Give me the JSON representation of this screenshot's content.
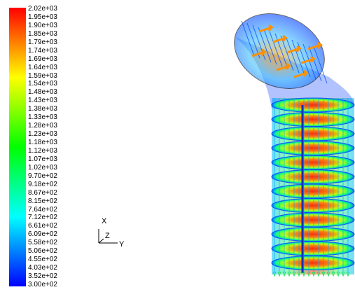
{
  "colorbar": {
    "labels": [
      "2.02e+03",
      "1.95e+03",
      "1.90e+03",
      "1.85e+03",
      "1.79e+03",
      "1.74e+03",
      "1.69e+03",
      "1.64e+03",
      "1.59e+03",
      "1.54e+03",
      "1.48e+03",
      "1.43e+03",
      "1.38e+03",
      "1.33e+03",
      "1.28e+03",
      "1.23e+03",
      "1.18e+03",
      "1.12e+03",
      "1.07e+03",
      "1.02e+03",
      "9.70e+02",
      "9.18e+02",
      "8.67e+02",
      "8.15e+02",
      "7.64e+02",
      "7.12e+02",
      "6.61e+02",
      "6.09e+02",
      "5.58e+02",
      "5.06e+02",
      "4.55e+02",
      "4.03e+02",
      "3.52e+02",
      "3.00e+02"
    ],
    "colors_top_to_bottom": [
      "#ff0000",
      "#ff8000",
      "#ffff00",
      "#80ff00",
      "#00ff00",
      "#00ff80",
      "#00ffff",
      "#0080ff",
      "#0000ff"
    ]
  },
  "axes_triad": {
    "x_label": "X",
    "z_label": "Z",
    "y_label": "Y"
  },
  "model": {
    "icon": "pipe-elbow-vector-plot"
  }
}
